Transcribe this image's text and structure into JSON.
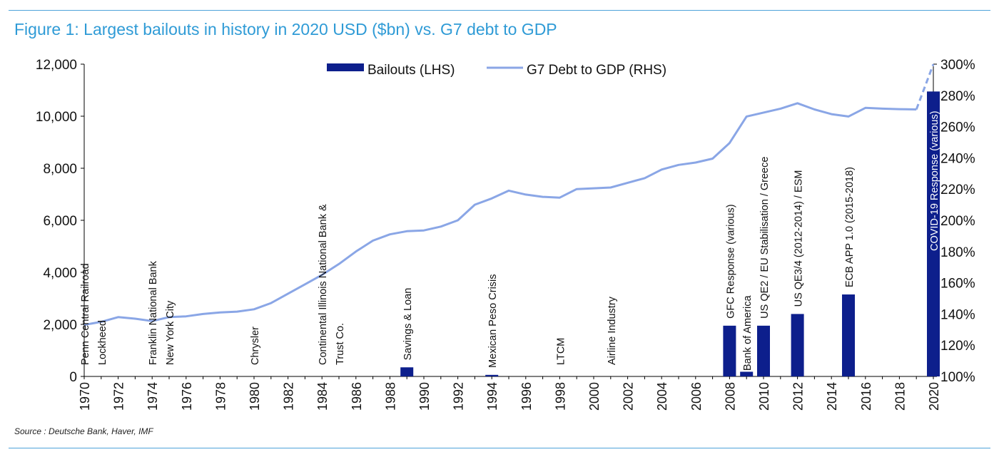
{
  "header": {
    "title": "Figure 1: Largest bailouts in history in 2020 USD ($bn) vs. G7 debt to GDP"
  },
  "footer": {
    "source": "Source : Deutsche Bank, Haver, IMF"
  },
  "chart_data": {
    "type": "bar",
    "x": [
      1970,
      1971,
      1972,
      1973,
      1974,
      1975,
      1976,
      1977,
      1978,
      1979,
      1980,
      1981,
      1982,
      1983,
      1984,
      1985,
      1986,
      1987,
      1988,
      1989,
      1990,
      1991,
      1992,
      1993,
      1994,
      1995,
      1996,
      1997,
      1998,
      1999,
      2000,
      2001,
      2002,
      2003,
      2004,
      2005,
      2006,
      2007,
      2008,
      2009,
      2010,
      2011,
      2012,
      2013,
      2014,
      2015,
      2016,
      2017,
      2018,
      2019,
      2020
    ],
    "x_ticks": [
      "1970",
      "1972",
      "1974",
      "1976",
      "1978",
      "1980",
      "1982",
      "1984",
      "1986",
      "1988",
      "1990",
      "1992",
      "1994",
      "1996",
      "1998",
      "2000",
      "2002",
      "2004",
      "2006",
      "2008",
      "2010",
      "2012",
      "2014",
      "2016",
      "2018",
      "2020"
    ],
    "y_left": {
      "ylim": [
        0,
        12000
      ],
      "ticks": [
        "0",
        "2,000",
        "4,000",
        "6,000",
        "8,000",
        "10,000",
        "12,000"
      ]
    },
    "y_right": {
      "ylim": [
        100,
        300
      ],
      "ticks": [
        "100%",
        "120%",
        "140%",
        "160%",
        "180%",
        "200%",
        "220%",
        "240%",
        "260%",
        "280%",
        "300%"
      ]
    },
    "legend": {
      "position": "top-center",
      "bars_label": "Bailouts (LHS)",
      "line_label": "G7 Debt to GDP (RHS)"
    },
    "colors": {
      "bars": "#0d1f8c",
      "line": "#8aa6e6",
      "title": "#2f9bd6",
      "rule": "#4da3d9"
    },
    "bars": [
      {
        "year": 1989,
        "value": 350
      },
      {
        "year": 1994,
        "value": 60
      },
      {
        "year": 2008,
        "value": 1950
      },
      {
        "year": 2009,
        "value": 180
      },
      {
        "year": 2010,
        "value": 1950
      },
      {
        "year": 2012,
        "value": 2400
      },
      {
        "year": 2015,
        "value": 3150
      },
      {
        "year": 2020,
        "value": 10950
      }
    ],
    "debt_line": [
      [
        1970,
        133
      ],
      [
        1971,
        135
      ],
      [
        1972,
        138
      ],
      [
        1973,
        137
      ],
      [
        1974,
        135.5
      ],
      [
        1975,
        138
      ],
      [
        1976,
        138.5
      ],
      [
        1977,
        140
      ],
      [
        1978,
        141
      ],
      [
        1979,
        141.5
      ],
      [
        1980,
        143
      ],
      [
        1981,
        147
      ],
      [
        1982,
        153
      ],
      [
        1983,
        159
      ],
      [
        1984,
        165
      ],
      [
        1985,
        172
      ],
      [
        1986,
        180
      ],
      [
        1987,
        187
      ],
      [
        1988,
        191
      ],
      [
        1989,
        193
      ],
      [
        1990,
        193.5
      ],
      [
        1991,
        196
      ],
      [
        1992,
        200
      ],
      [
        1993,
        210
      ],
      [
        1994,
        214
      ],
      [
        1995,
        219
      ],
      [
        1996,
        216.5
      ],
      [
        1997,
        215
      ],
      [
        1998,
        214.5
      ],
      [
        1999,
        220
      ],
      [
        2000,
        220.5
      ],
      [
        2001,
        221
      ],
      [
        2002,
        224
      ],
      [
        2003,
        227
      ],
      [
        2004,
        232.5
      ],
      [
        2005,
        235.5
      ],
      [
        2006,
        237
      ],
      [
        2007,
        239.5
      ],
      [
        2008,
        249.5
      ],
      [
        2009,
        266.5
      ],
      [
        2010,
        269
      ],
      [
        2011,
        271.5
      ],
      [
        2012,
        275
      ],
      [
        2013,
        271
      ],
      [
        2014,
        268
      ],
      [
        2015,
        266.5
      ],
      [
        2016,
        272
      ],
      [
        2017,
        271.5
      ],
      [
        2018,
        271.2
      ],
      [
        2019,
        271
      ]
    ],
    "debt_projection": [
      [
        2019,
        271
      ],
      [
        2020,
        300
      ]
    ],
    "annotations": [
      {
        "label": "Penn Central Railroad",
        "year": 1970
      },
      {
        "label": "Lockheed",
        "year": 1971
      },
      {
        "label": "Franklin National Bank",
        "year": 1974
      },
      {
        "label": "New York City",
        "year": 1975
      },
      {
        "label": "Chrysler",
        "year": 1980
      },
      {
        "label": "Continental Illinois National Bank &",
        "year": 1984
      },
      {
        "label": "Trust Co.",
        "year": 1985
      },
      {
        "label": "Savings & Loan",
        "year": 1989
      },
      {
        "label": "Mexican Peso Crisis",
        "year": 1994
      },
      {
        "label": "LTCM",
        "year": 1998
      },
      {
        "label": "Airline Industry",
        "year": 2001
      },
      {
        "label": "GFC Response (various)",
        "year": 2008
      },
      {
        "label": "Bank of America",
        "year": 2009
      },
      {
        "label": "US QE2 / EU Stabilisation / Greece",
        "year": 2010
      },
      {
        "label": "US QE3/4 (2012-2014) / ESM",
        "year": 2012
      },
      {
        "label": "ECB APP 1.0 (2015-2018)",
        "year": 2015
      },
      {
        "label": "COVID-19 Response (various)",
        "year": 2020
      }
    ]
  }
}
